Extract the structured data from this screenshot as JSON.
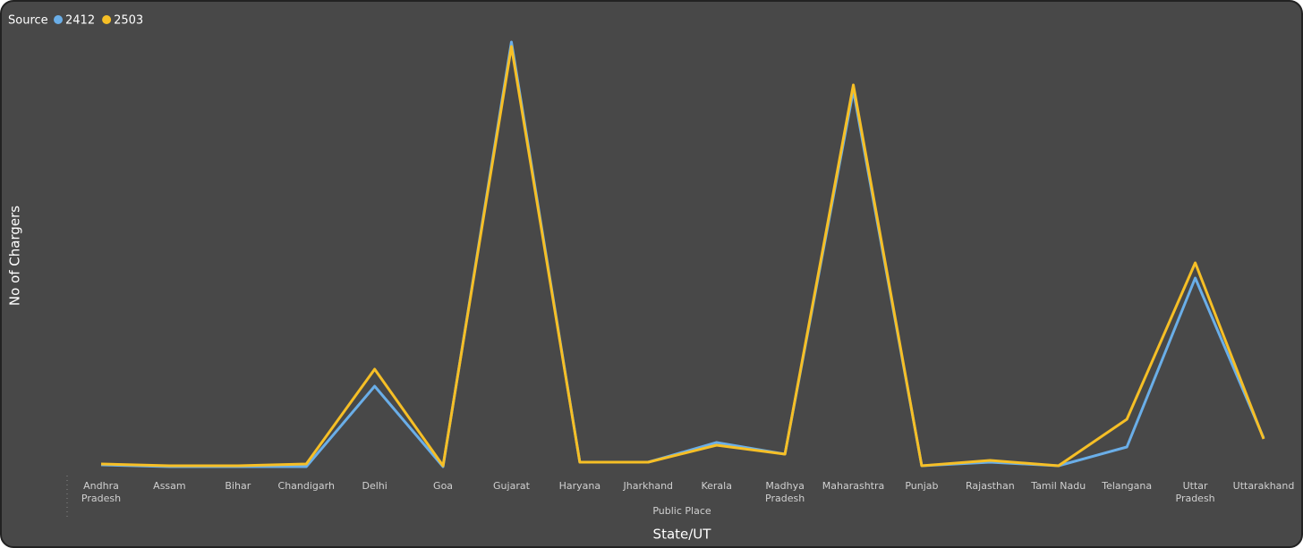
{
  "chart_data": {
    "type": "line",
    "legend_title": "Source",
    "x_group_label": "Public Place",
    "xlabel": "State/UT",
    "ylabel": "No of Chargers",
    "categories": [
      "Andhra Pradesh",
      "Assam",
      "Bihar",
      "Chandigarh",
      "Delhi",
      "Goa",
      "Gujarat",
      "Haryana",
      "Jharkhand",
      "Kerala",
      "Madhya Pradesh",
      "Maharashtra",
      "Punjab",
      "Rajasthan",
      "Tamil Nadu",
      "Telangana",
      "Uttar Pradesh",
      "Uttarakhand"
    ],
    "series": [
      {
        "name": "2412",
        "color": "#6aaee8",
        "values": [
          5,
          3,
          3,
          3,
          93,
          3,
          478,
          8,
          8,
          30,
          17,
          424,
          4,
          8,
          4,
          25,
          214,
          35
        ]
      },
      {
        "name": "2503",
        "color": "#f6bf26",
        "values": [
          6,
          4,
          4,
          6,
          112,
          4,
          473,
          8,
          8,
          27,
          17,
          430,
          4,
          10,
          4,
          56,
          231,
          34
        ]
      }
    ],
    "ylim": [
      0,
      490
    ]
  }
}
